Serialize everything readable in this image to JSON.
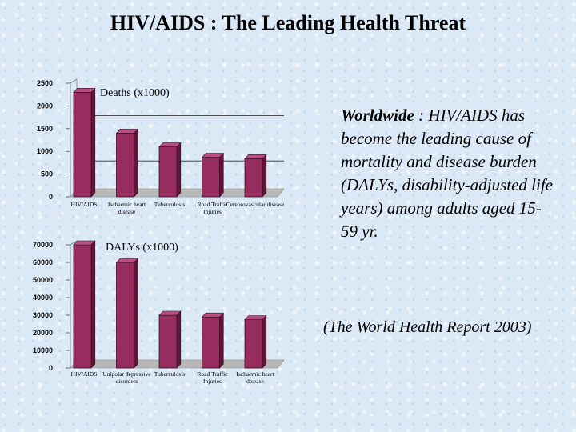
{
  "slide": {
    "title": "HIV/AIDS : The Leading Health Threat"
  },
  "text": {
    "lead": "Worldwide",
    "body": " : HIV/AIDS has become the leading cause of mortality and disease burden (DALYs, disability-adjusted life years) among adults aged 15-59 yr.",
    "citation": "(The World Health Report 2003)"
  },
  "colors": {
    "bar": "#962d5e",
    "bar_top": "#b84f82",
    "bar_side": "#5f1638",
    "floor": "#b9b9b9"
  },
  "chart_data": [
    {
      "type": "bar",
      "title": "Deaths (x1000)",
      "categories": [
        "HIV/AIDS",
        "Ischaemic heart disease",
        "Tuberculosis",
        "Road Traffic Injuries",
        "Cerebrovascular disease"
      ],
      "values": [
        2300,
        1400,
        1100,
        870,
        840
      ],
      "ylim": [
        0,
        2500
      ],
      "yticks": [
        "0",
        "500",
        "1000",
        "1500",
        "2000",
        "2500"
      ],
      "tick_values": [
        0,
        500,
        1000,
        1500,
        2000,
        2500
      ],
      "grid": false
    },
    {
      "type": "bar",
      "title": "DALYs (x1000)",
      "categories": [
        "HIV/AIDS",
        "Unipolar depressive disorders",
        "Tuberculosis",
        "Road Traffic Injuries",
        "Ischaemic heart disease"
      ],
      "values": [
        70000,
        60000,
        30000,
        29000,
        27500
      ],
      "ylim": [
        0,
        70000
      ],
      "yticks": [
        "0",
        "10000",
        "20000",
        "30000",
        "40000",
        "50000",
        "60000",
        "70000"
      ],
      "tick_values": [
        0,
        10000,
        20000,
        30000,
        40000,
        50000,
        60000,
        70000
      ],
      "grid": false
    }
  ]
}
